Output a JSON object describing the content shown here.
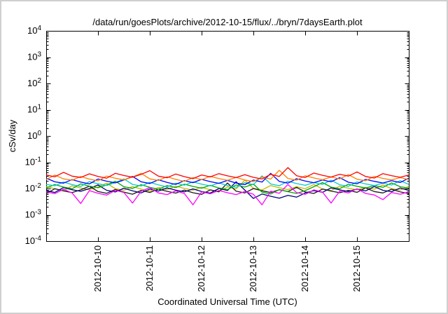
{
  "style": {
    "page_background": "#ffffff",
    "frame_border": "#cfcfcf",
    "axis_color": "#000000",
    "text_color": "#000000"
  },
  "chart_data": {
    "type": "line",
    "title": "/data/run/goesPlots/archive/2012-10-15/flux/../bryn/7daysEarth.plot",
    "xlabel": "Coordinated Universal Time (UTC)",
    "ylabel": "cSv/day",
    "y_scale": "log10",
    "ylim": [
      0.0001,
      10000
    ],
    "y_ticks_exponents": [
      4,
      3,
      2,
      1,
      0,
      -1,
      -2,
      -3,
      -4
    ],
    "x_range_days": [
      0,
      7
    ],
    "x_tick_positions_days": [
      1,
      2,
      3,
      4,
      5,
      6
    ],
    "x_tick_labels": [
      "2012-10-10",
      "2012-10-11",
      "2012-10-12",
      "2012-10-13",
      "2012-10-14",
      "2012-10-15"
    ],
    "grid": false,
    "legend": "none",
    "samples_per_day": 6,
    "series": [
      {
        "name": "series-gold",
        "color": "#c8b400",
        "values": [
          0.0121,
          0.0097,
          0.0083,
          0.0127,
          0.0105,
          0.009,
          0.0116,
          0.016,
          0.0099,
          0.0086,
          0.0119,
          0.0095,
          0.0079,
          0.011,
          0.0092,
          0.0123,
          0.0101,
          0.0087,
          0.0112,
          0.0089,
          0.0077,
          0.0116,
          0.0097,
          0.0209,
          0.0102,
          0.0088,
          0.013,
          0.0107,
          0.0091,
          0.0117,
          0.0099,
          0.0143,
          0.0096,
          0.0084,
          0.0123,
          0.0103,
          0.0089,
          0.011,
          0.0094,
          0.0138,
          0.0099,
          0.0088,
          0.0121
        ]
      },
      {
        "name": "series-black",
        "color": "#1a1a1a",
        "values": [
          0.0064,
          0.0098,
          0.0081,
          0.007,
          0.0089,
          0.0123,
          0.0077,
          0.0066,
          0.0092,
          0.0073,
          0.0061,
          0.0085,
          0.0071,
          0.0095,
          0.0078,
          0.0067,
          0.0087,
          0.0069,
          0.006,
          0.0089,
          0.0075,
          0.0162,
          0.0079,
          0.0068,
          0.01,
          0.0082,
          0.0071,
          0.009,
          0.0077,
          0.0111,
          0.0074,
          0.0065,
          0.0095,
          0.008,
          0.0069,
          0.0085,
          0.0072,
          0.0106,
          0.0077,
          0.0068,
          0.0094,
          0.0075,
          0.0064
        ]
      },
      {
        "name": "series-navy",
        "color": "#000080",
        "values": [
          0.0084,
          0.0071,
          0.0109,
          0.009,
          0.0078,
          0.01,
          0.0138,
          0.0086,
          0.0074,
          0.0103,
          0.0082,
          0.0068,
          0.0095,
          0.008,
          0.0106,
          0.0087,
          0.0075,
          0.0097,
          0.0077,
          0.0067,
          0.01,
          0.0084,
          0.0181,
          0.0088,
          0.0042,
          0.0062,
          0.0051,
          0.0043,
          0.0055,
          0.0047,
          0.0068,
          0.0083,
          0.0072,
          0.0106,
          0.0089,
          0.0077,
          0.0095,
          0.0081,
          0.0119,
          0.0086,
          0.0076,
          0.0105,
          0.0084
        ]
      },
      {
        "name": "series-green",
        "color": "#00a800",
        "values": [
          0.0104,
          0.0143,
          0.0114,
          0.0098,
          0.015,
          0.0124,
          0.0107,
          0.0137,
          0.0189,
          0.0117,
          0.0101,
          0.014,
          0.0112,
          0.0094,
          0.013,
          0.0109,
          0.0146,
          0.012,
          0.0103,
          0.0133,
          0.0105,
          0.0091,
          0.0137,
          0.0114,
          0.0148,
          0.0073,
          0.0062,
          0.0092,
          0.0076,
          0.0065,
          0.0083,
          0.0117,
          0.0169,
          0.0113,
          0.0099,
          0.0146,
          0.0122,
          0.0105,
          0.013,
          0.0111,
          0.0163,
          0.0117,
          0.0104
        ]
      },
      {
        "name": "series-cyan",
        "color": "#00cccc",
        "values": [
          0.0144,
          0.0128,
          0.0176,
          0.0141,
          0.012,
          0.0184,
          0.0152,
          0.0131,
          0.0168,
          0.0232,
          0.0144,
          0.0125,
          0.0173,
          0.0138,
          0.0115,
          0.016,
          0.0134,
          0.0179,
          0.0147,
          0.0126,
          0.0163,
          0.013,
          0.0112,
          0.0168,
          0.0141,
          0.0304,
          0.0149,
          0.0128,
          0.0189,
          0.0155,
          0.0133,
          0.017,
          0.0144,
          0.0208,
          0.0139,
          0.0122,
          0.0179,
          0.015,
          0.013,
          0.016,
          0.0136,
          0.02,
          0.0144
        ]
      },
      {
        "name": "series-blue",
        "color": "#0000ff",
        "values": [
          0.025,
          0.018,
          0.016,
          0.022,
          0.0176,
          0.015,
          0.023,
          0.019,
          0.0164,
          0.021,
          0.029,
          0.018,
          0.0156,
          0.0216,
          0.0172,
          0.0144,
          0.02,
          0.0168,
          0.0224,
          0.0184,
          0.0158,
          0.0204,
          0.0162,
          0.014,
          0.021,
          0.0176,
          0.038,
          0.0186,
          0.016,
          0.0236,
          0.0194,
          0.0166,
          0.0212,
          0.018,
          0.026,
          0.0174,
          0.0152,
          0.0224,
          0.0188,
          0.0162,
          0.02,
          0.017,
          0.025
        ]
      },
      {
        "name": "series-orange",
        "color": "#ff8000",
        "values": [
          0.0221,
          0.0325,
          0.0234,
          0.0208,
          0.0286,
          0.0229,
          0.0195,
          0.0299,
          0.0247,
          0.0213,
          0.0273,
          0.0377,
          0.0234,
          0.0203,
          0.0281,
          0.0224,
          0.0187,
          0.026,
          0.0218,
          0.0291,
          0.0239,
          0.0205,
          0.0265,
          0.0211,
          0.0182,
          0.0273,
          0.0229,
          0.0494,
          0.0242,
          0.0208,
          0.0307,
          0.0252,
          0.0216,
          0.0276,
          0.0234,
          0.0338,
          0.0226,
          0.0198,
          0.0291,
          0.0244,
          0.0211,
          0.026,
          0.0221
        ]
      },
      {
        "name": "series-magenta",
        "color": "#ff00ff",
        "values": [
          0.0075,
          0.0064,
          0.0094,
          0.0068,
          0.0027,
          0.0083,
          0.0066,
          0.0056,
          0.0086,
          0.0071,
          0.0028,
          0.0079,
          0.0109,
          0.0068,
          0.0059,
          0.0081,
          0.0065,
          0.0024,
          0.0075,
          0.0063,
          0.0084,
          0.0069,
          0.0059,
          0.0077,
          0.0061,
          0.0024,
          0.0079,
          0.0066,
          0.0143,
          0.007,
          0.006,
          0.0089,
          0.0073,
          0.0028,
          0.008,
          0.0068,
          0.0098,
          0.0065,
          0.0057,
          0.0038,
          0.0071,
          0.0061,
          0.0075
        ]
      },
      {
        "name": "series-red",
        "color": "#ff0000",
        "values": [
          0.033,
          0.0281,
          0.0413,
          0.0297,
          0.0264,
          0.0363,
          0.029,
          0.0248,
          0.038,
          0.0314,
          0.0271,
          0.0347,
          0.0479,
          0.0297,
          0.0257,
          0.0356,
          0.0284,
          0.0238,
          0.033,
          0.0277,
          0.037,
          0.0304,
          0.0261,
          0.0337,
          0.0267,
          0.0231,
          0.0347,
          0.029,
          0.0627,
          0.0307,
          0.0264,
          0.0389,
          0.032,
          0.0274,
          0.035,
          0.0297,
          0.0429,
          0.0287,
          0.0251,
          0.037,
          0.031,
          0.0267,
          0.033
        ]
      }
    ]
  }
}
